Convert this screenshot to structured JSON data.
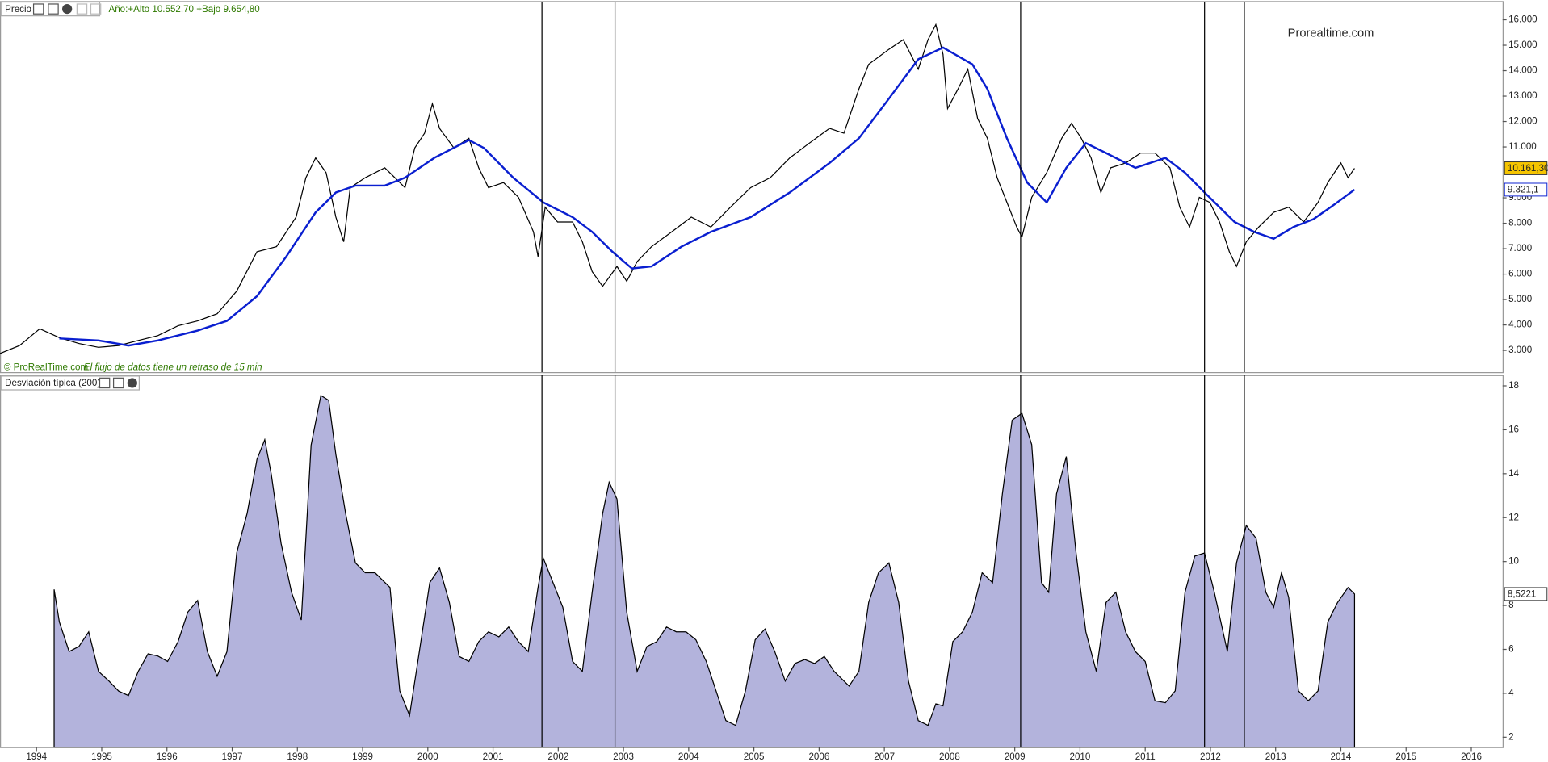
{
  "chart_data": [
    {
      "type": "line",
      "title": "Precio",
      "subtitle": "Año:+Alto 10.552,70 +Bajo 9.654,80",
      "watermark": "Prorealtime.com",
      "source": "© ProRealTime.com",
      "note": "El flujo de datos tiene un retraso de 15 min",
      "xlim": [
        1993.44,
        2016.48
      ],
      "ylim": [
        2146,
        16698
      ],
      "yticks": [
        {
          "value": 3000,
          "label": "3.000"
        },
        {
          "value": 4000,
          "label": "4.000"
        },
        {
          "value": 5000,
          "label": "5.000"
        },
        {
          "value": 6000,
          "label": "6.000"
        },
        {
          "value": 7000,
          "label": "7.000"
        },
        {
          "value": 8000,
          "label": "8.000"
        },
        {
          "value": 9000,
          "label": "9.000"
        },
        {
          "value": 11000,
          "label": "11.000"
        },
        {
          "value": 12000,
          "label": "12.000"
        },
        {
          "value": 13000,
          "label": "13.000"
        },
        {
          "value": 14000,
          "label": "14.000"
        },
        {
          "value": 15000,
          "label": "15.000"
        },
        {
          "value": 16000,
          "label": "16.000"
        }
      ],
      "vlines": [
        2001.75,
        2002.87,
        2009.09,
        2011.91,
        2012.52
      ],
      "series": [
        {
          "color": "#000000",
          "current_label": "10.161,30",
          "current_color": "#f5c400",
          "x": [
            1993.44,
            1993.74,
            1994.05,
            1994.35,
            1994.65,
            1994.95,
            1995.26,
            1995.56,
            1995.86,
            1996.17,
            1996.47,
            1996.77,
            1997.07,
            1997.38,
            1997.68,
            1997.98,
            1998.13,
            1998.28,
            1998.44,
            1998.59,
            1998.71,
            1998.81,
            1999.04,
            1999.34,
            1999.65,
            1999.8,
            1999.95,
            2000.07,
            2000.18,
            2000.4,
            2000.63,
            2000.78,
            2000.93,
            2001.16,
            2001.39,
            2001.62,
            2001.69,
            2001.8,
            2001.99,
            2002.22,
            2002.37,
            2002.52,
            2002.68,
            2002.9,
            2003.05,
            2003.21,
            2003.43,
            2003.74,
            2004.04,
            2004.34,
            2004.64,
            2004.95,
            2005.25,
            2005.55,
            2005.85,
            2006.16,
            2006.38,
            2006.61,
            2006.76,
            2007.07,
            2007.29,
            2007.52,
            2007.67,
            2007.79,
            2007.9,
            2007.97,
            2008.13,
            2008.28,
            2008.43,
            2008.58,
            2008.73,
            2008.88,
            2009.03,
            2009.11,
            2009.26,
            2009.49,
            2009.72,
            2009.87,
            2010.02,
            2010.17,
            2010.32,
            2010.47,
            2010.7,
            2010.93,
            2011.15,
            2011.38,
            2011.53,
            2011.68,
            2011.83,
            2011.99,
            2012.14,
            2012.29,
            2012.4,
            2012.55,
            2012.74,
            2012.97,
            2013.2,
            2013.43,
            2013.65,
            2013.8,
            2014.0,
            2014.11,
            2014.21
          ],
          "values": [
            2880,
            3190,
            3850,
            3500,
            3270,
            3120,
            3190,
            3390,
            3580,
            3970,
            4160,
            4440,
            5330,
            6880,
            7080,
            8240,
            9790,
            10570,
            9990,
            8240,
            7270,
            9400,
            9790,
            10180,
            9400,
            10960,
            11540,
            12700,
            11730,
            10960,
            11340,
            10180,
            9400,
            9600,
            9020,
            7660,
            6690,
            8630,
            8050,
            8050,
            7270,
            6100,
            5520,
            6300,
            5720,
            6490,
            7080,
            7660,
            8240,
            7850,
            8630,
            9400,
            9790,
            10570,
            11150,
            11730,
            11540,
            13280,
            14250,
            14840,
            15220,
            14060,
            15220,
            15810,
            14640,
            12510,
            13280,
            14060,
            12120,
            11340,
            9790,
            8820,
            7850,
            7460,
            9020,
            9990,
            11340,
            11930,
            11340,
            10570,
            9210,
            10180,
            10370,
            10760,
            10760,
            10180,
            8630,
            7850,
            9020,
            8820,
            8050,
            6880,
            6300,
            7270,
            7850,
            8430,
            8630,
            8050,
            8820,
            9600,
            10370,
            9790,
            10161.3
          ]
        },
        {
          "color": "#0a1fd0",
          "current_label": "9.321,1",
          "current_color": "#ffffff",
          "x": [
            1994.35,
            1994.95,
            1995.41,
            1995.86,
            1996.47,
            1996.92,
            1997.38,
            1997.83,
            1998.28,
            1998.59,
            1998.89,
            1999.34,
            1999.65,
            2000.1,
            2000.63,
            2000.86,
            2001.31,
            2001.77,
            2002.22,
            2002.52,
            2002.83,
            2003.13,
            2003.43,
            2003.89,
            2004.34,
            2004.95,
            2005.55,
            2006.16,
            2006.61,
            2007.07,
            2007.52,
            2007.9,
            2008.35,
            2008.58,
            2008.88,
            2009.19,
            2009.49,
            2009.79,
            2010.09,
            2010.4,
            2010.85,
            2011.31,
            2011.61,
            2011.91,
            2012.37,
            2012.67,
            2012.97,
            2013.27,
            2013.58,
            2013.88,
            2014.21
          ],
          "values": [
            3470,
            3390,
            3190,
            3390,
            3780,
            4160,
            5130,
            6690,
            8430,
            9210,
            9480,
            9480,
            9790,
            10570,
            11270,
            10960,
            9790,
            8820,
            8240,
            7660,
            6880,
            6220,
            6300,
            7080,
            7660,
            8240,
            9210,
            10370,
            11340,
            12900,
            14450,
            14910,
            14250,
            13280,
            11340,
            9600,
            8820,
            10180,
            11150,
            10760,
            10180,
            10570,
            9990,
            9210,
            8050,
            7660,
            7390,
            7850,
            8160,
            8700,
            9321.1
          ]
        }
      ]
    },
    {
      "type": "area",
      "title": "Desviación típica (200)",
      "xlim": [
        1993.44,
        2016.48
      ],
      "ylim": [
        1.55,
        18.49
      ],
      "yticks": [
        2,
        4,
        6,
        8,
        10,
        12,
        14,
        16,
        18
      ],
      "xticks": [
        1994,
        1995,
        1996,
        1997,
        1998,
        1999,
        2000,
        2001,
        2002,
        2003,
        2004,
        2005,
        2006,
        2007,
        2008,
        2009,
        2010,
        2011,
        2012,
        2013,
        2014,
        2015,
        2016
      ],
      "vlines": [
        2001.75,
        2002.87,
        2009.09,
        2011.91,
        2012.52
      ],
      "series": [
        {
          "color": "#b3b3dc",
          "current_label": "8,5221",
          "current_color": "#ffffff",
          "x": [
            1994.27,
            1994.35,
            1994.5,
            1994.65,
            1994.8,
            1994.95,
            1995.11,
            1995.26,
            1995.41,
            1995.56,
            1995.71,
            1995.86,
            1996.01,
            1996.17,
            1996.32,
            1996.47,
            1996.62,
            1996.77,
            1996.92,
            1997.07,
            1997.23,
            1997.38,
            1997.5,
            1997.6,
            1997.75,
            1997.91,
            1998.06,
            1998.21,
            1998.36,
            1998.48,
            1998.59,
            1998.74,
            1998.89,
            1999.04,
            1999.19,
            1999.42,
            1999.57,
            1999.72,
            1999.87,
            2000.03,
            2000.18,
            2000.33,
            2000.48,
            2000.63,
            2000.78,
            2000.93,
            2001.09,
            2001.24,
            2001.39,
            2001.54,
            2001.69,
            2001.77,
            2001.92,
            2002.07,
            2002.22,
            2002.37,
            2002.52,
            2002.68,
            2002.78,
            2002.9,
            2003.05,
            2003.21,
            2003.36,
            2003.51,
            2003.66,
            2003.81,
            2003.96,
            2004.11,
            2004.27,
            2004.42,
            2004.57,
            2004.72,
            2004.87,
            2005.02,
            2005.17,
            2005.32,
            2005.48,
            2005.63,
            2005.78,
            2005.93,
            2006.08,
            2006.23,
            2006.46,
            2006.61,
            2006.76,
            2006.91,
            2007.07,
            2007.22,
            2007.37,
            2007.52,
            2007.67,
            2007.79,
            2007.9,
            2008.05,
            2008.2,
            2008.35,
            2008.5,
            2008.66,
            2008.81,
            2008.96,
            2009.11,
            2009.26,
            2009.41,
            2009.52,
            2009.64,
            2009.79,
            2009.94,
            2010.09,
            2010.25,
            2010.4,
            2010.55,
            2010.7,
            2010.85,
            2011.0,
            2011.15,
            2011.31,
            2011.46,
            2011.61,
            2011.76,
            2011.91,
            2012.06,
            2012.26,
            2012.4,
            2012.55,
            2012.7,
            2012.85,
            2012.97,
            2013.09,
            2013.2,
            2013.35,
            2013.5,
            2013.65,
            2013.8,
            2013.95,
            2014.11,
            2014.21
          ],
          "values": [
            8.73,
            7.25,
            5.9,
            6.13,
            6.8,
            5.0,
            4.56,
            4.1,
            3.9,
            5.0,
            5.8,
            5.7,
            5.45,
            6.35,
            7.7,
            8.23,
            5.9,
            4.78,
            5.9,
            10.4,
            12.2,
            14.65,
            15.55,
            13.97,
            10.83,
            8.6,
            7.34,
            15.3,
            17.56,
            17.34,
            14.87,
            12.18,
            9.94,
            9.49,
            9.49,
            8.82,
            4.11,
            2.99,
            5.9,
            9.04,
            9.71,
            8.14,
            5.68,
            5.45,
            6.35,
            6.8,
            6.57,
            7.02,
            6.35,
            5.9,
            8.82,
            10.16,
            9.04,
            7.92,
            5.45,
            5.0,
            8.6,
            12.18,
            13.61,
            12.85,
            7.7,
            5.0,
            6.13,
            6.35,
            7.02,
            6.8,
            6.8,
            6.44,
            5.45,
            4.11,
            2.76,
            2.54,
            4.11,
            6.44,
            6.93,
            5.9,
            4.56,
            5.36,
            5.54,
            5.36,
            5.68,
            5.0,
            4.33,
            5.0,
            8.14,
            9.49,
            9.94,
            8.14,
            4.56,
            2.76,
            2.54,
            3.52,
            3.43,
            6.35,
            6.8,
            7.7,
            9.49,
            9.04,
            13.08,
            16.44,
            16.75,
            15.32,
            9.04,
            8.6,
            13.08,
            14.78,
            10.39,
            6.8,
            5.0,
            8.14,
            8.6,
            6.8,
            5.9,
            5.45,
            3.66,
            3.57,
            4.11,
            8.6,
            10.25,
            10.39,
            8.6,
            5.9,
            9.94,
            11.64,
            11.06,
            8.6,
            7.92,
            9.49,
            8.37,
            4.11,
            3.66,
            4.11,
            7.25,
            8.14,
            8.82,
            8.5221
          ]
        }
      ]
    }
  ]
}
